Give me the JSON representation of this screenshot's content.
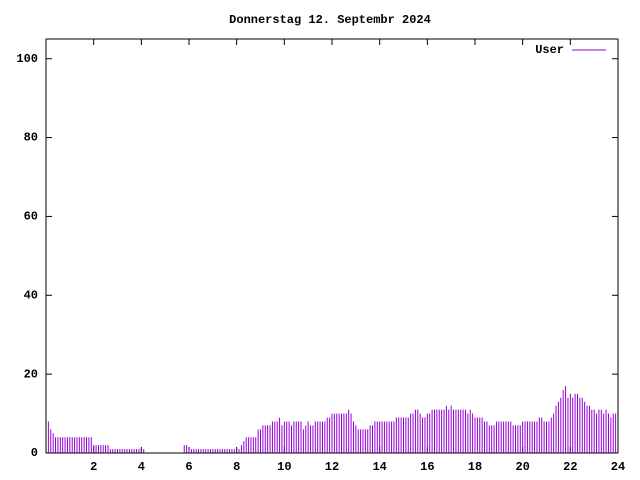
{
  "chart_data": {
    "type": "impulse",
    "title": "Donnerstag 12. Septembr 2024",
    "series": [
      {
        "name": "User",
        "color": "#9400d3",
        "x": [
          0,
          0.1,
          0.2,
          0.3,
          0.4,
          0.5,
          0.6,
          0.7,
          0.8,
          0.9,
          1,
          1.1,
          1.2,
          1.3,
          1.4,
          1.5,
          1.6,
          1.7,
          1.8,
          1.9,
          2,
          2.1,
          2.2,
          2.3,
          2.4,
          2.5,
          2.6,
          2.7,
          2.8,
          2.9,
          3,
          3.1,
          3.2,
          3.3,
          3.4,
          3.5,
          3.6,
          3.7,
          3.8,
          3.9,
          4,
          4.1,
          4.2,
          4.3,
          4.4,
          4.5,
          4.6,
          4.7,
          4.8,
          4.9,
          5,
          5.1,
          5.2,
          5.3,
          5.4,
          5.5,
          5.6,
          5.7,
          5.8,
          5.9,
          6,
          6.1,
          6.2,
          6.3,
          6.4,
          6.5,
          6.6,
          6.7,
          6.8,
          6.9,
          7,
          7.1,
          7.2,
          7.3,
          7.4,
          7.5,
          7.6,
          7.7,
          7.8,
          7.9,
          8,
          8.1,
          8.2,
          8.3,
          8.4,
          8.5,
          8.6,
          8.7,
          8.8,
          8.9,
          9,
          9.1,
          9.2,
          9.3,
          9.4,
          9.5,
          9.6,
          9.7,
          9.8,
          9.9,
          10,
          10.1,
          10.2,
          10.3,
          10.4,
          10.5,
          10.6,
          10.7,
          10.8,
          10.9,
          11,
          11.1,
          11.2,
          11.3,
          11.4,
          11.5,
          11.6,
          11.7,
          11.8,
          11.9,
          12,
          12.1,
          12.2,
          12.3,
          12.4,
          12.5,
          12.6,
          12.7,
          12.8,
          12.9,
          13,
          13.1,
          13.2,
          13.3,
          13.4,
          13.5,
          13.6,
          13.7,
          13.8,
          13.9,
          14,
          14.1,
          14.2,
          14.3,
          14.4,
          14.5,
          14.6,
          14.7,
          14.8,
          14.9,
          15,
          15.1,
          15.2,
          15.3,
          15.4,
          15.5,
          15.6,
          15.7,
          15.8,
          15.9,
          16,
          16.1,
          16.2,
          16.3,
          16.4,
          16.5,
          16.6,
          16.7,
          16.8,
          16.9,
          17,
          17.1,
          17.2,
          17.3,
          17.4,
          17.5,
          17.6,
          17.7,
          17.8,
          17.9,
          18,
          18.1,
          18.2,
          18.3,
          18.4,
          18.5,
          18.6,
          18.7,
          18.8,
          18.9,
          19,
          19.1,
          19.2,
          19.3,
          19.4,
          19.5,
          19.6,
          19.7,
          19.8,
          19.9,
          20,
          20.1,
          20.2,
          20.3,
          20.4,
          20.5,
          20.6,
          20.7,
          20.8,
          20.9,
          21,
          21.1,
          21.2,
          21.3,
          21.4,
          21.5,
          21.6,
          21.7,
          21.8,
          21.9,
          22,
          22.1,
          22.2,
          22.3,
          22.4,
          22.5,
          22.6,
          22.7,
          22.8,
          22.9,
          23,
          23.1,
          23.2,
          23.3,
          23.4,
          23.5,
          23.6,
          23.7,
          23.8,
          23.9
        ],
        "values": [
          8,
          8,
          6,
          5,
          4,
          4,
          4,
          4,
          4,
          4,
          4,
          4,
          4,
          4,
          4,
          4,
          4,
          4,
          4,
          4,
          2,
          2,
          2,
          2,
          2,
          2,
          2,
          1,
          1,
          1,
          1,
          1,
          1,
          1,
          1,
          1,
          1,
          1,
          1,
          1,
          1,
          1,
          0,
          0,
          0,
          0,
          0,
          0,
          0,
          0,
          0,
          0,
          0,
          0,
          0,
          0,
          0,
          0,
          2,
          2,
          1,
          1,
          1,
          1,
          1,
          1,
          1,
          1,
          1,
          1,
          1,
          1,
          1,
          1,
          1,
          1,
          1,
          1,
          1,
          1,
          1,
          1,
          2,
          3,
          4,
          4,
          4,
          4,
          4,
          6,
          6,
          7,
          7,
          7,
          7,
          8,
          8,
          8,
          9,
          7,
          8,
          8,
          8,
          7,
          8,
          8,
          8,
          8,
          6,
          7,
          8,
          7,
          7,
          8,
          8,
          8,
          8,
          8,
          9,
          9,
          10,
          10,
          10,
          10,
          10,
          10,
          10,
          11,
          10,
          8,
          7,
          6,
          6,
          6,
          6,
          6,
          7,
          7,
          8,
          8,
          8,
          8,
          8,
          8,
          8,
          8,
          8,
          9,
          9,
          9,
          9,
          9,
          9,
          10,
          10,
          11,
          11,
          10,
          9,
          9,
          10,
          10,
          11,
          11,
          11,
          11,
          11,
          11,
          12,
          11,
          12,
          11,
          11,
          11,
          11,
          11,
          11,
          10,
          11,
          10,
          9,
          9,
          9,
          9,
          8,
          8,
          7,
          7,
          7,
          8,
          8,
          8,
          8,
          8,
          8,
          8,
          7,
          7,
          7,
          7,
          8,
          8,
          8,
          8,
          8,
          8,
          8,
          9,
          9,
          8,
          8,
          8,
          9,
          10,
          12,
          13,
          14,
          16,
          17,
          14,
          15,
          14,
          15,
          15,
          14,
          14,
          13,
          12,
          12,
          11,
          11,
          10,
          11,
          11,
          10,
          11,
          10,
          9,
          10,
          10
        ]
      }
    ],
    "xlim": [
      0,
      24
    ],
    "xticks": [
      2,
      4,
      6,
      8,
      10,
      12,
      14,
      16,
      18,
      20,
      22,
      24
    ],
    "ylim": [
      0,
      105
    ],
    "yticks": [
      0,
      20,
      40,
      60,
      80,
      100
    ]
  }
}
